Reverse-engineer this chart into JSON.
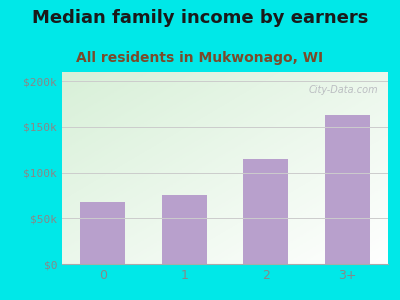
{
  "categories": [
    "0",
    "1",
    "2",
    "3+"
  ],
  "values": [
    68000,
    75000,
    115000,
    163000
  ],
  "bar_color": "#b8a0cc",
  "title": "Median family income by earners",
  "subtitle": "All residents in Mukwonago, WI",
  "title_fontsize": 13,
  "subtitle_fontsize": 10,
  "title_color": "#1a1a1a",
  "subtitle_color": "#7a4a2a",
  "outer_bg": "#00e8e8",
  "plot_bg_topleft": "#d8f0d8",
  "plot_bg_bottomright": "#ffffff",
  "yticks": [
    0,
    50000,
    100000,
    150000,
    200000
  ],
  "ytick_labels": [
    "$0",
    "$50k",
    "$100k",
    "$150k",
    "$200k"
  ],
  "ylim": [
    0,
    210000
  ],
  "watermark": "City-Data.com",
  "tick_color": "#888888",
  "grid_color": "#cccccc"
}
